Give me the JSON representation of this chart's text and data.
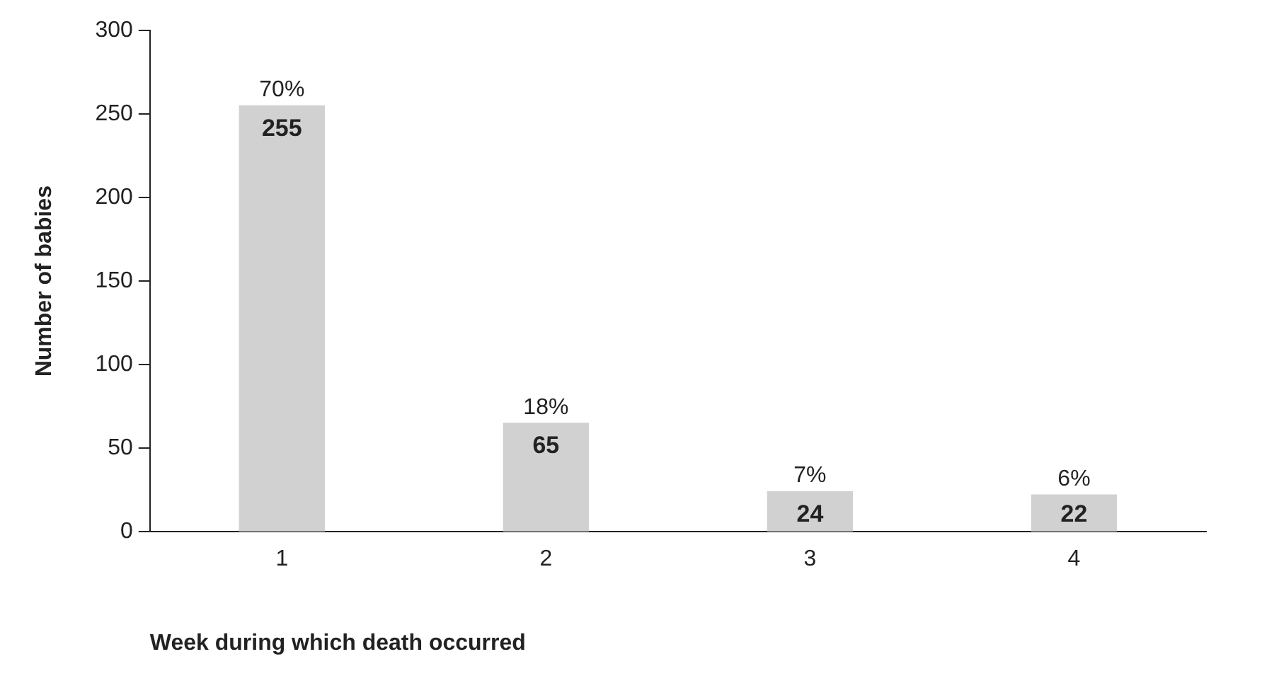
{
  "chart_data": {
    "type": "bar",
    "xlabel": "Week during which death occurred",
    "ylabel": "Number of babies",
    "categories": [
      "1",
      "2",
      "3",
      "4"
    ],
    "values": [
      255,
      65,
      24,
      22
    ],
    "color": "#d1d1d1",
    "ylim": [
      0,
      300
    ],
    "yticks": [
      0,
      50,
      100,
      150,
      200,
      250,
      300
    ],
    "grid": false,
    "legend": false,
    "data_labels": true,
    "annotations": [
      {
        "text": "70%",
        "x": "1",
        "y": 255
      },
      {
        "text": "18%",
        "x": "2",
        "y": 65
      },
      {
        "text": "7%",
        "x": "3",
        "y": 24
      },
      {
        "text": "6%",
        "x": "4",
        "y": 22
      }
    ]
  }
}
